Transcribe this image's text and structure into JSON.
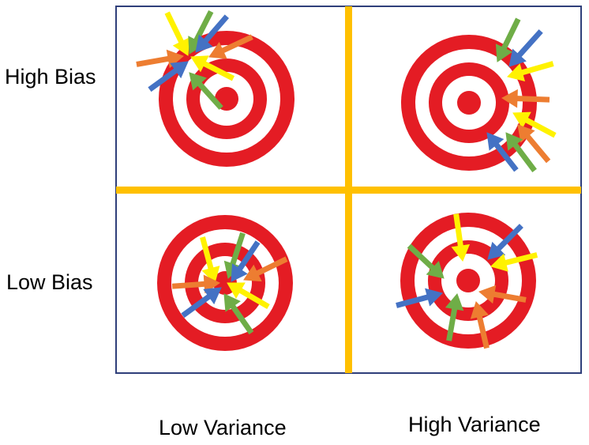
{
  "labels": {
    "high_bias": "High Bias",
    "low_bias": "Low Bias",
    "low_variance": "Low Variance",
    "high_variance": "High Variance"
  },
  "colors": {
    "divider": "#FFC000",
    "border": "#2F3F7A",
    "ring_red": "#E41C24",
    "arrow_yellow": "#FFF200",
    "arrow_green": "#6FAD47",
    "arrow_blue": "#4472C4",
    "arrow_orange": "#ED7D31"
  },
  "targets": [
    {
      "name": "target-high-bias-low-variance",
      "cell": "top-left"
    },
    {
      "name": "target-high-bias-high-variance",
      "cell": "top-right"
    },
    {
      "name": "target-low-bias-low-variance",
      "cell": "bottom-left"
    },
    {
      "name": "target-low-bias-high-variance",
      "cell": "bottom-right"
    }
  ]
}
